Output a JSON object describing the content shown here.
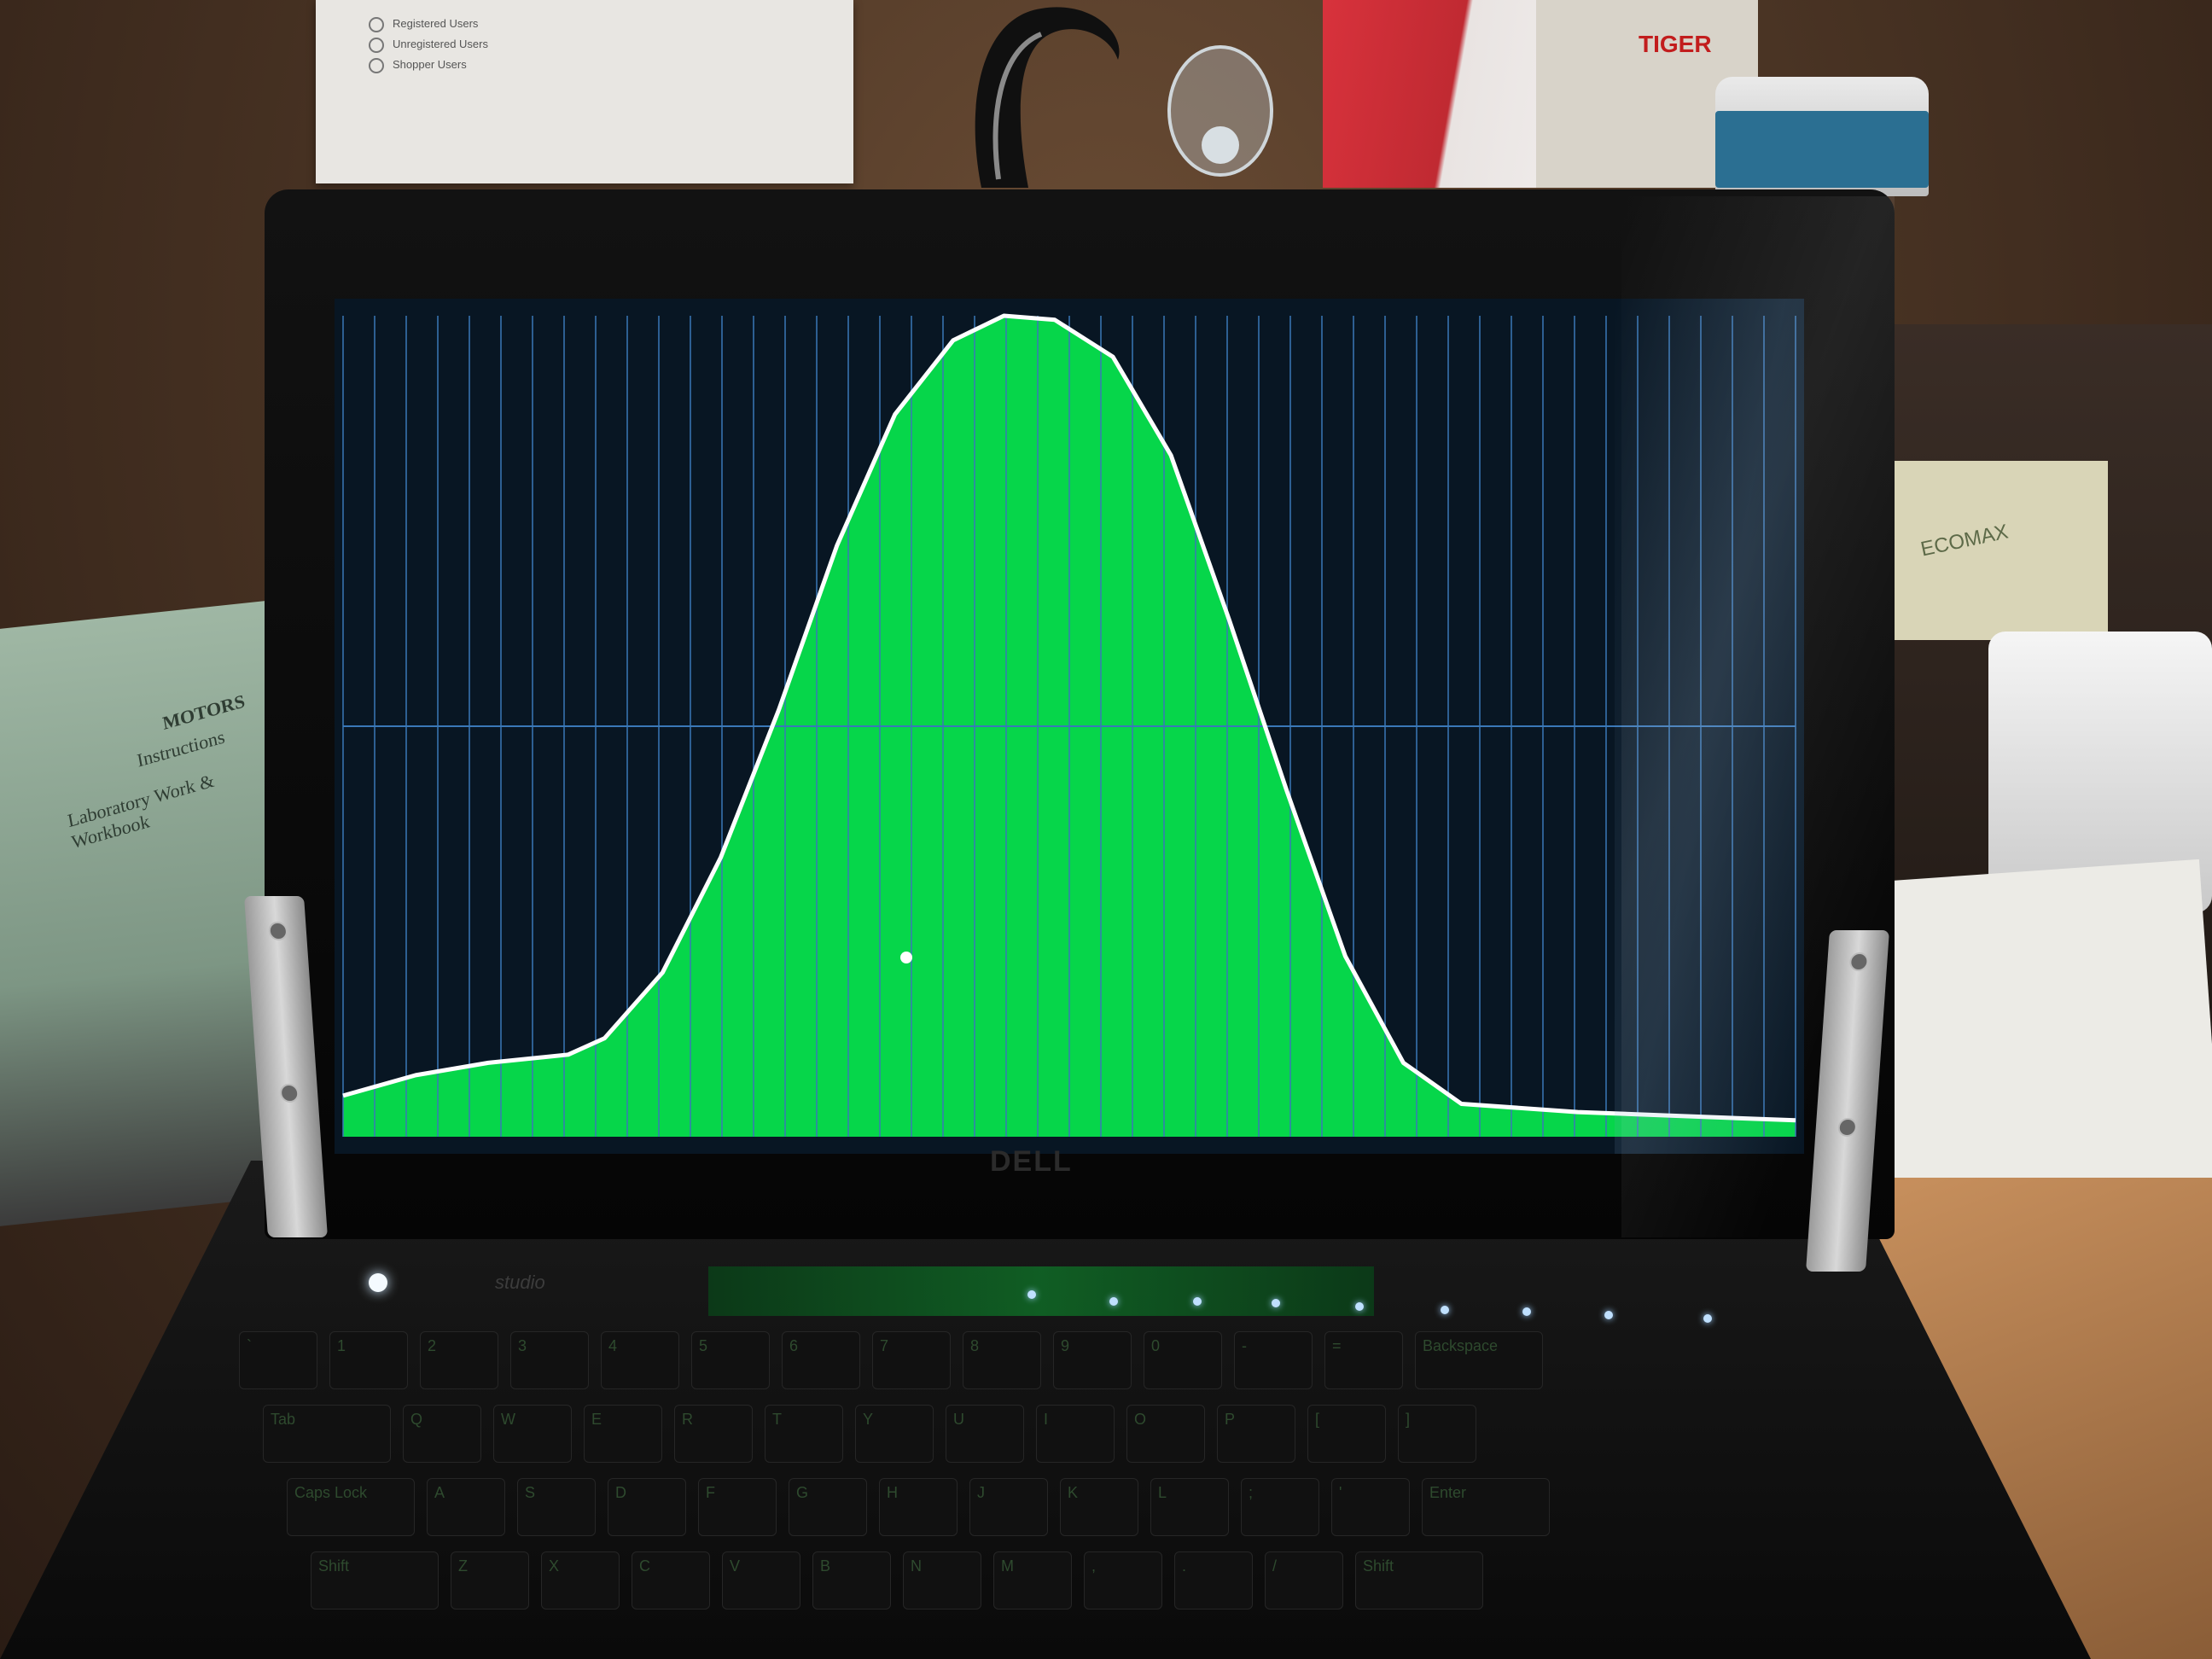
{
  "scene": {
    "note_lines": [
      "Registered Users",
      "Unregistered Users",
      "Shopper Users"
    ],
    "tiger_label": "TIGER",
    "eco_label": "ECOMAX",
    "book_lines": [
      "MOTORS",
      "Instructions",
      "Laboratory Work & Workbook"
    ],
    "laptop_logo": "DELL",
    "laptop_model": "studio",
    "keys_row1": [
      "`",
      "1",
      "2",
      "3",
      "4",
      "5",
      "6",
      "7",
      "8",
      "9",
      "0",
      "-",
      "=",
      "Backspace"
    ],
    "keys_row2": [
      "Tab",
      "Q",
      "W",
      "E",
      "R",
      "T",
      "Y",
      "U",
      "I",
      "O",
      "P",
      "[",
      "]"
    ],
    "keys_row3": [
      "Caps Lock",
      "A",
      "S",
      "D",
      "F",
      "G",
      "H",
      "J",
      "K",
      "L",
      ";",
      "'",
      "Enter"
    ],
    "keys_row4": [
      "Shift",
      "Z",
      "X",
      "C",
      "V",
      "B",
      "N",
      "M",
      ",",
      ".",
      "/",
      "Shift"
    ]
  },
  "screen_plot": {
    "type": "area",
    "description_colors": {
      "background": "#081623",
      "grid": "#3a78b8",
      "fill": "#06d64a",
      "curve": "#ffffff"
    },
    "grid": {
      "vertical_lines": 46,
      "horizontal_midline": true
    },
    "curve_points": [
      [
        0.0,
        0.05
      ],
      [
        0.05,
        0.075
      ],
      [
        0.1,
        0.09
      ],
      [
        0.155,
        0.1
      ],
      [
        0.18,
        0.12
      ],
      [
        0.22,
        0.2
      ],
      [
        0.26,
        0.34
      ],
      [
        0.3,
        0.52
      ],
      [
        0.34,
        0.72
      ],
      [
        0.38,
        0.88
      ],
      [
        0.42,
        0.97
      ],
      [
        0.455,
        1.0
      ],
      [
        0.49,
        0.995
      ],
      [
        0.53,
        0.95
      ],
      [
        0.57,
        0.83
      ],
      [
        0.61,
        0.63
      ],
      [
        0.65,
        0.42
      ],
      [
        0.69,
        0.22
      ],
      [
        0.73,
        0.09
      ],
      [
        0.77,
        0.04
      ],
      [
        0.85,
        0.03
      ],
      [
        1.0,
        0.02
      ]
    ]
  }
}
